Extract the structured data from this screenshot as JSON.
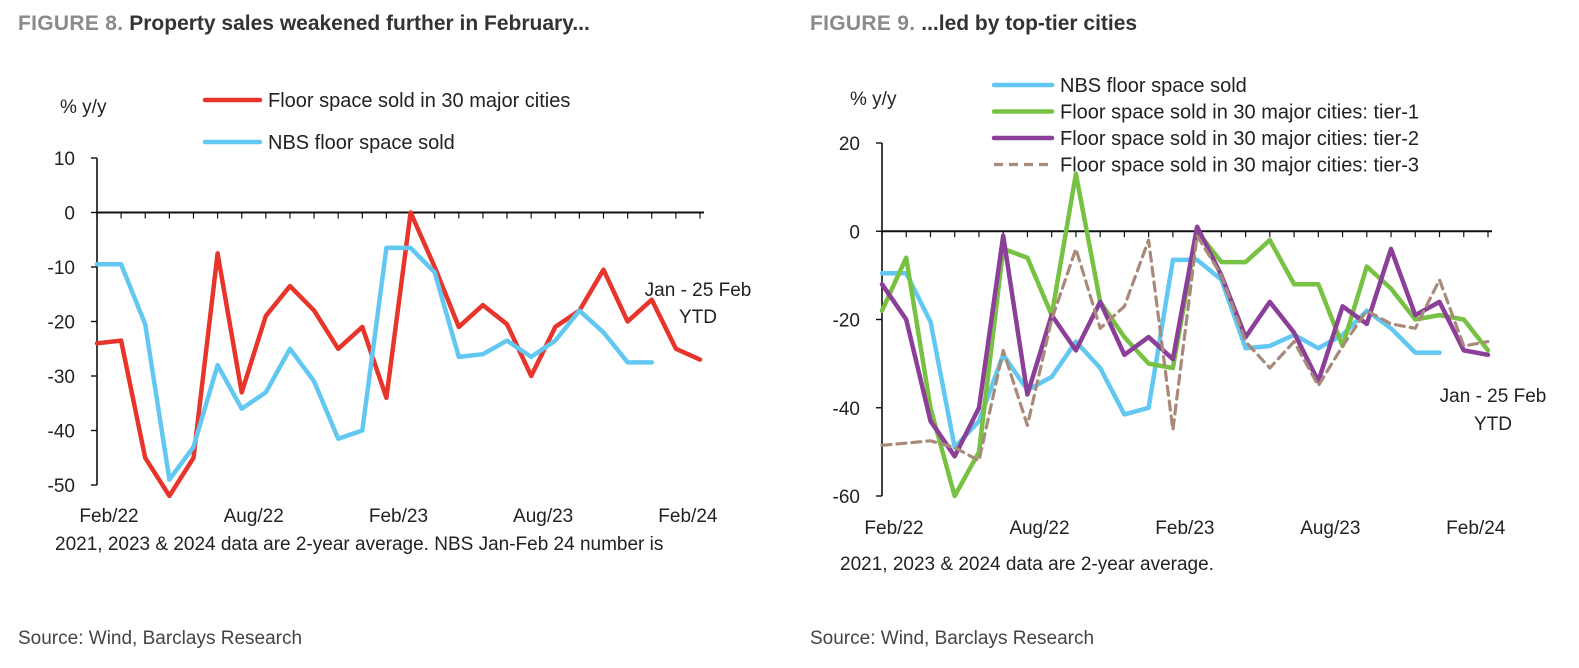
{
  "colors": {
    "red": "#e8352b",
    "light_blue": "#62c8f2",
    "green": "#77c143",
    "purple": "#8b3f98",
    "tan": "#a88a7a",
    "axis": "#111111"
  },
  "figures": [
    {
      "number": "FIGURE 8.",
      "title": "Property sales weakened further in February...",
      "source": "Source: Wind, Barclays Research"
    },
    {
      "number": "FIGURE 9.",
      "title": "...led by top-tier cities",
      "source": "Source: Wind, Barclays Research"
    }
  ],
  "chart_data": [
    {
      "type": "line",
      "ylabel": "% y/y",
      "ylim": [
        -50,
        10
      ],
      "yticks": [
        10,
        0,
        -10,
        -20,
        -30,
        -40,
        -50
      ],
      "xtick_labels": [
        "Feb/22",
        "Aug/22",
        "Feb/23",
        "Aug/23",
        "Feb/24"
      ],
      "x_start": "Feb/22",
      "x_end": "Feb/24",
      "annotation": [
        "Jan - 25 Feb",
        "YTD"
      ],
      "note": "2021, 2023 & 2024 data are 2-year average. NBS Jan-Feb 24 number is",
      "legend_position": "top",
      "series": [
        {
          "name": "Floor space sold in 30 major cities",
          "color": "#e8352b",
          "values": [
            -24,
            -23.5,
            -45,
            -52,
            -45,
            -7.5,
            -33,
            -19,
            -13.5,
            -18,
            -25,
            -21,
            -34,
            0,
            -10,
            -21,
            -17,
            -20.5,
            -30,
            -21,
            -18,
            -10.5,
            -20,
            -16,
            -25,
            -27
          ]
        },
        {
          "name": "NBS floor space sold",
          "color": "#62c8f2",
          "values": [
            -9.5,
            -9.5,
            -20.5,
            -49,
            -43,
            -28,
            -36,
            -33,
            -25,
            -31,
            -41.5,
            -40,
            -6.5,
            -6.5,
            -11,
            -26.5,
            -26,
            -23.5,
            -26.5,
            -23.5,
            -18,
            -22,
            -27.5,
            -27.5
          ]
        }
      ]
    },
    {
      "type": "line",
      "ylabel": "% y/y",
      "ylim": [
        -60,
        20
      ],
      "yticks": [
        20,
        0,
        -20,
        -40,
        -60
      ],
      "xtick_labels": [
        "Feb/22",
        "Aug/22",
        "Feb/23",
        "Aug/23",
        "Feb/24"
      ],
      "x_start": "Feb/22",
      "x_end": "Feb/24",
      "annotation": [
        "Jan - 25 Feb",
        "YTD"
      ],
      "note": "2021, 2023 & 2024 data are 2-year average.",
      "legend_position": "top",
      "series": [
        {
          "name": "NBS floor space sold",
          "color": "#62c8f2",
          "dashed": false,
          "values": [
            -9.5,
            -9.5,
            -20.5,
            -49,
            -43,
            -28,
            -36,
            -33,
            -25,
            -31,
            -41.5,
            -40,
            -6.5,
            -6.5,
            -11,
            -26.5,
            -26,
            -23.5,
            -26.5,
            -23.5,
            -18,
            -22,
            -27.5,
            -27.5
          ]
        },
        {
          "name": "Floor space sold in 30 major cities: tier-1",
          "color": "#77c143",
          "dashed": false,
          "values": [
            -18,
            -6,
            -40,
            -60,
            -50,
            -4,
            -6,
            -19,
            13,
            -16,
            -24,
            -30,
            -31,
            0,
            -7,
            -7,
            -2,
            -12,
            -12,
            -26,
            -8,
            -13,
            -20,
            -19,
            -20,
            -27
          ]
        },
        {
          "name": "Floor space sold in 30 major cities: tier-2",
          "color": "#8b3f98",
          "dashed": false,
          "values": [
            -12,
            -20,
            -43,
            -51,
            -40,
            -1,
            -37,
            -19,
            -27,
            -16,
            -28,
            -24,
            -29,
            1,
            -10,
            -24,
            -16,
            -23,
            -34,
            -17,
            -21,
            -4,
            -19,
            -16,
            -27,
            -28
          ]
        },
        {
          "name": "Floor space sold in 30 major cities: tier-3",
          "color": "#a88a7a",
          "dashed": true,
          "values": [
            -48.5,
            -48,
            -47.5,
            -49,
            -52,
            -27,
            -44,
            -20,
            -4,
            -22,
            -17,
            -2,
            -45,
            -1,
            -10,
            -25,
            -31,
            -25,
            -35,
            -26,
            -18,
            -21,
            -22,
            -11,
            -26,
            -25
          ]
        }
      ]
    }
  ]
}
